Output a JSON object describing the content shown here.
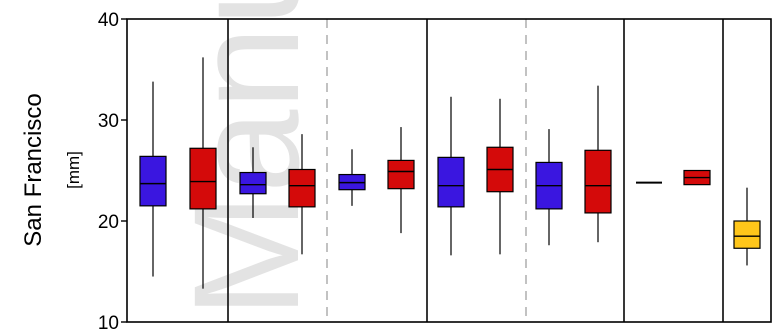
{
  "chart_data": {
    "type": "box",
    "ylabel": "San Francisco",
    "unit": "[mm]",
    "ylim": [
      10,
      40
    ],
    "yticks": [
      10,
      20,
      30,
      40
    ],
    "grid": false,
    "watermark": "Manu",
    "group_separators": [
      {
        "after_box": 2,
        "style": "solid"
      },
      {
        "after_box": 4,
        "style": "dashed"
      },
      {
        "after_box": 6,
        "style": "solid"
      },
      {
        "after_box": 8,
        "style": "dashed"
      },
      {
        "after_box": 10,
        "style": "solid"
      },
      {
        "after_box": 12,
        "style": "solid"
      }
    ],
    "boxes": [
      {
        "color": "#3a16e0",
        "min": 14.5,
        "q1": 21.5,
        "median": 23.7,
        "q3": 26.4,
        "max": 33.8
      },
      {
        "color": "#d40a0a",
        "min": 13.3,
        "q1": 21.2,
        "median": 23.9,
        "q3": 27.2,
        "max": 36.2
      },
      {
        "color": "#3a16e0",
        "min": 20.3,
        "q1": 22.7,
        "median": 23.6,
        "q3": 24.8,
        "max": 27.3
      },
      {
        "color": "#d40a0a",
        "min": 16.7,
        "q1": 21.4,
        "median": 23.5,
        "q3": 25.1,
        "max": 28.6
      },
      {
        "color": "#3a16e0",
        "min": 21.5,
        "q1": 23.1,
        "median": 23.8,
        "q3": 24.6,
        "max": 27.1
      },
      {
        "color": "#d40a0a",
        "min": 18.8,
        "q1": 23.2,
        "median": 24.9,
        "q3": 26.0,
        "max": 29.3
      },
      {
        "color": "#3a16e0",
        "min": 16.6,
        "q1": 21.4,
        "median": 23.5,
        "q3": 26.3,
        "max": 32.3
      },
      {
        "color": "#d40a0a",
        "min": 16.7,
        "q1": 22.9,
        "median": 25.1,
        "q3": 27.3,
        "max": 32.1
      },
      {
        "color": "#3a16e0",
        "min": 17.6,
        "q1": 21.2,
        "median": 23.5,
        "q3": 25.8,
        "max": 29.1
      },
      {
        "color": "#d40a0a",
        "min": 17.9,
        "q1": 20.8,
        "median": 23.5,
        "q3": 27.0,
        "max": 33.4
      },
      {
        "color": "#3a16e0",
        "min": 23.8,
        "q1": 23.8,
        "median": 23.8,
        "q3": 23.8,
        "max": 23.8,
        "line_only": true
      },
      {
        "color": "#d40a0a",
        "min": 23.6,
        "q1": 23.6,
        "median": 24.3,
        "q3": 25.0,
        "max": 25.0
      },
      {
        "color": "#ffc61a",
        "min": 15.6,
        "q1": 17.3,
        "median": 18.5,
        "q3": 20.0,
        "max": 23.3
      }
    ]
  }
}
